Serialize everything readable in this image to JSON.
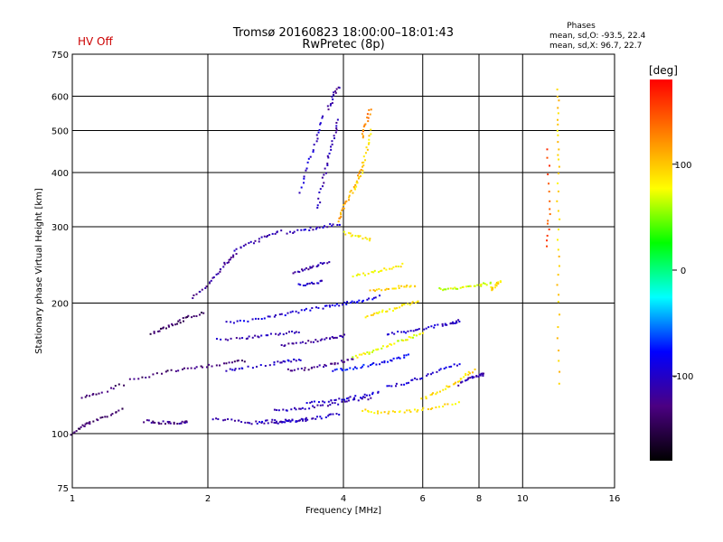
{
  "chart_data": {
    "type": "scatter",
    "title": "Tromsø 20160823 18:00:00–18:01:43",
    "subtitle": "RwPretec (8p)",
    "status_text": "HV Off",
    "status_color": "#cc0000",
    "xlabel": "Frequency [MHz]",
    "ylabel": "Stationary phase Virtual Height [km]",
    "x_scale": "log",
    "y_scale": "log",
    "xlim": [
      1,
      16
    ],
    "ylim": [
      75,
      750
    ],
    "x_ticks": [
      1,
      2,
      4,
      6,
      8,
      10,
      16
    ],
    "x_tick_labels": [
      "1",
      "2",
      "4",
      "6",
      "8",
      "10",
      "16"
    ],
    "y_ticks": [
      75,
      100,
      200,
      300,
      400,
      500,
      600,
      750
    ],
    "y_tick_labels": [
      "75",
      "100",
      "200",
      "300",
      "400",
      "500",
      "600",
      "750"
    ],
    "grid": true,
    "legend_block": {
      "title": "Phases",
      "line_o": "mean, sd,O:  -93.5, 22.4",
      "line_x": "mean, sd,X:  96.7, 22.7"
    },
    "colorbar": {
      "title": "[deg]",
      "range": [
        -180,
        180
      ],
      "ticks": [
        100,
        0,
        -100
      ],
      "tick_labels": [
        "100",
        "0",
        "-100"
      ],
      "colormap": [
        "#000000",
        "#4b0082",
        "#0000ff",
        "#00ffff",
        "#00ff00",
        "#ffff00",
        "#ff8000",
        "#ff0000"
      ]
    },
    "traces": [
      {
        "x": [
          1.0,
          1.05,
          1.1,
          1.2,
          1.3
        ],
        "y": [
          100,
          104,
          106,
          110,
          114
        ],
        "phase": -140
      },
      {
        "x": [
          1.45,
          1.55,
          1.65,
          1.75,
          1.8
        ],
        "y": [
          107,
          106,
          106,
          106,
          107
        ],
        "phase": -125
      },
      {
        "x": [
          1.05,
          1.15,
          1.3
        ],
        "y": [
          121,
          124,
          130
        ],
        "phase": -135
      },
      {
        "x": [
          1.35,
          1.55,
          1.75,
          1.95,
          2.2,
          2.4
        ],
        "y": [
          133,
          137,
          141,
          143,
          145,
          147
        ],
        "phase": -135
      },
      {
        "x": [
          1.5,
          1.6,
          1.7,
          1.8,
          1.95
        ],
        "y": [
          170,
          175,
          180,
          185,
          190
        ],
        "phase": -140
      },
      {
        "x": [
          1.85,
          2.0,
          2.1,
          2.2,
          2.3
        ],
        "y": [
          205,
          220,
          235,
          248,
          260
        ],
        "phase": -120
      },
      {
        "x": [
          2.05,
          2.3,
          2.5,
          2.8,
          3.0,
          3.3
        ],
        "y": [
          108,
          107,
          106,
          106,
          107,
          107
        ],
        "phase": -110
      },
      {
        "x": [
          2.6,
          2.9,
          3.1,
          3.3,
          3.6,
          3.9
        ],
        "y": [
          107,
          107,
          107,
          108,
          109,
          111
        ],
        "phase": -100
      },
      {
        "x": [
          2.8,
          3.1,
          3.4,
          3.8,
          4.2,
          4.6
        ],
        "y": [
          113,
          114,
          115,
          117,
          119,
          121
        ],
        "phase": -110
      },
      {
        "x": [
          3.3,
          3.7,
          4.0,
          4.4,
          4.8
        ],
        "y": [
          118,
          119,
          120,
          122,
          124
        ],
        "phase": -95
      },
      {
        "x": [
          4.4,
          4.8,
          5.3,
          5.8,
          6.4,
          7.2
        ],
        "y": [
          113,
          112,
          112,
          113,
          115,
          118
        ],
        "phase": 90
      },
      {
        "x": [
          6.0,
          6.5,
          7.0,
          7.4,
          7.8
        ],
        "y": [
          120,
          125,
          130,
          135,
          140
        ],
        "phase": 90
      },
      {
        "x": [
          7.2,
          7.6,
          8.0,
          8.2
        ],
        "y": [
          130,
          134,
          136,
          137
        ],
        "phase": -110
      },
      {
        "x": [
          2.2,
          2.4,
          2.8,
          3.0,
          3.2
        ],
        "y": [
          140,
          142,
          145,
          147,
          148
        ],
        "phase": -100
      },
      {
        "x": [
          3.0,
          3.3,
          3.6,
          3.9,
          4.2
        ],
        "y": [
          140,
          141,
          143,
          146,
          148
        ],
        "phase": -125
      },
      {
        "x": [
          3.8,
          4.1,
          4.4,
          4.8,
          5.2,
          5.6
        ],
        "y": [
          140,
          141,
          143,
          145,
          148,
          152
        ],
        "phase": -80
      },
      {
        "x": [
          5.0,
          5.5,
          6.0,
          6.6,
          7.2
        ],
        "y": [
          128,
          131,
          135,
          140,
          145
        ],
        "phase": -95
      },
      {
        "x": [
          2.1,
          2.4,
          2.6,
          2.9,
          3.2
        ],
        "y": [
          165,
          166,
          168,
          170,
          172
        ],
        "phase": -110
      },
      {
        "x": [
          2.9,
          3.2,
          3.5,
          3.8,
          4.0
        ],
        "y": [
          160,
          162,
          164,
          166,
          168
        ],
        "phase": -120
      },
      {
        "x": [
          4.2,
          4.5,
          4.8,
          5.2,
          5.6,
          6.0
        ],
        "y": [
          150,
          153,
          157,
          162,
          166,
          170
        ],
        "phase": 75
      },
      {
        "x": [
          5.0,
          5.5,
          6.0,
          6.6,
          7.0,
          7.2
        ],
        "y": [
          170,
          172,
          175,
          178,
          180,
          182
        ],
        "phase": -100
      },
      {
        "x": [
          2.2,
          2.5,
          2.8,
          3.1,
          3.4
        ],
        "y": [
          180,
          183,
          186,
          190,
          194
        ],
        "phase": -95
      },
      {
        "x": [
          3.5,
          3.8,
          4.1,
          4.4,
          4.8
        ],
        "y": [
          195,
          197,
          200,
          203,
          207
        ],
        "phase": -90
      },
      {
        "x": [
          4.5,
          4.8,
          5.2,
          5.5,
          5.9
        ],
        "y": [
          186,
          190,
          194,
          198,
          202
        ],
        "phase": 85
      },
      {
        "x": [
          4.6,
          5.0,
          5.4,
          5.8
        ],
        "y": [
          213,
          215,
          218,
          220
        ],
        "phase": 95
      },
      {
        "x": [
          4.2,
          4.6,
          5.0,
          5.4
        ],
        "y": [
          230,
          235,
          240,
          245
        ],
        "phase": 80
      },
      {
        "x": [
          3.2,
          3.4,
          3.6
        ],
        "y": [
          220,
          222,
          225
        ],
        "phase": -105
      },
      {
        "x": [
          3.1,
          3.3,
          3.5,
          3.7
        ],
        "y": [
          235,
          240,
          245,
          248
        ],
        "phase": -115
      },
      {
        "x": [
          6.5,
          7.0,
          7.5,
          8.0,
          8.5
        ],
        "y": [
          215,
          216,
          218,
          220,
          222
        ],
        "phase": 70
      },
      {
        "x": [
          2.3,
          2.5,
          2.7,
          2.9
        ],
        "y": [
          265,
          275,
          285,
          295
        ],
        "phase": -110
      },
      {
        "x": [
          3.0,
          3.3,
          3.6,
          3.9
        ],
        "y": [
          290,
          295,
          300,
          305
        ],
        "phase": -105
      },
      {
        "x": [
          4.0,
          4.3,
          4.6
        ],
        "y": [
          290,
          285,
          280
        ],
        "phase": 85
      },
      {
        "x": [
          3.5,
          3.6,
          3.7,
          3.8,
          3.9
        ],
        "y": [
          330,
          380,
          430,
          480,
          530
        ],
        "phase": -110
      },
      {
        "x": [
          3.2,
          3.35,
          3.5,
          3.6
        ],
        "y": [
          360,
          420,
          480,
          540
        ],
        "phase": -100
      },
      {
        "x": [
          3.7,
          3.8,
          3.9
        ],
        "y": [
          560,
          600,
          630
        ],
        "phase": -115
      },
      {
        "x": [
          3.9,
          4.0,
          4.1,
          4.3,
          4.4
        ],
        "y": [
          310,
          330,
          350,
          380,
          420
        ],
        "phase": 110
      },
      {
        "x": [
          4.2,
          4.4,
          4.5,
          4.6
        ],
        "y": [
          360,
          400,
          450,
          500
        ],
        "phase": 90
      },
      {
        "x": [
          4.4,
          4.5,
          4.6
        ],
        "y": [
          480,
          520,
          560
        ],
        "phase": 130
      },
      {
        "x": [
          12.0,
          12.0,
          12.0,
          12.0,
          12.0,
          12.0
        ],
        "y": [
          130,
          200,
          280,
          400,
          500,
          620
        ],
        "phase": 95
      },
      {
        "x": [
          11.3,
          11.5,
          11.4
        ],
        "y": [
          270,
          330,
          450
        ],
        "phase": 150
      },
      {
        "x": [
          8.5,
          8.7,
          8.9
        ],
        "y": [
          215,
          220,
          225
        ],
        "phase": 90
      }
    ]
  }
}
